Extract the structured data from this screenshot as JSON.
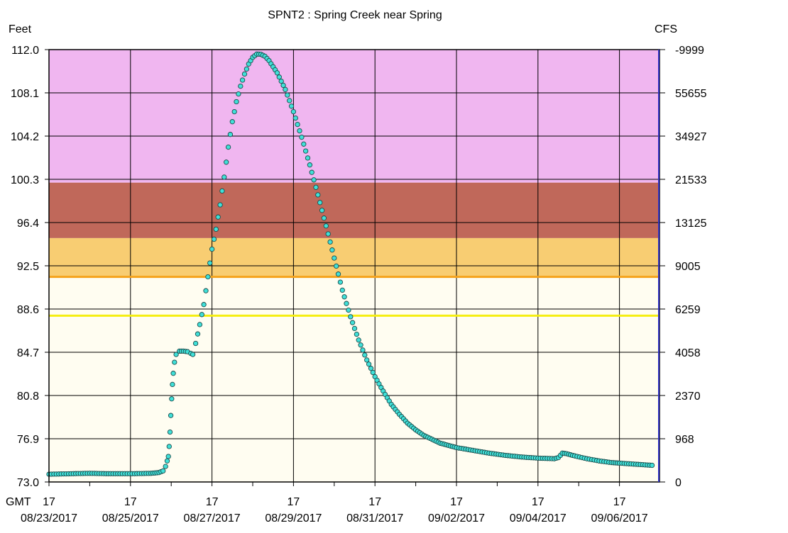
{
  "chart_data": {
    "type": "scatter",
    "title": "SPNT2  :  Spring Creek near Spring",
    "left_axis_label": "Feet",
    "right_axis_label": "CFS",
    "x_axis_prefix": "GMT",
    "ylim": [
      73.0,
      112.0
    ],
    "y_ticks": [
      "112.0",
      "108.1",
      "104.2",
      "100.3",
      "96.4",
      "92.5",
      "88.6",
      "84.7",
      "80.8",
      "76.9",
      "73.0"
    ],
    "y_tick_values": [
      112.0,
      108.1,
      104.2,
      100.3,
      96.4,
      92.5,
      88.6,
      84.7,
      80.8,
      76.9,
      73.0
    ],
    "right_ticks": [
      "-9999",
      "55655",
      "34927",
      "21533",
      "13125",
      "9005",
      "6259",
      "4058",
      "2370",
      "968",
      "0"
    ],
    "x_range_days": [
      0,
      7.45
    ],
    "x_ticks": [
      {
        "day": 0,
        "hour": "17",
        "date": "08/23/2017"
      },
      {
        "day": 1,
        "hour": "17",
        "date": ""
      },
      {
        "day": 2,
        "hour": "17",
        "date": "08/25/2017"
      },
      {
        "day": 3,
        "hour": "17",
        "date": ""
      },
      {
        "day": 4,
        "hour": "17",
        "date": "08/27/2017"
      },
      {
        "day": 5,
        "hour": "17",
        "date": ""
      },
      {
        "day": 6,
        "hour": "17",
        "date": "08/29/2017"
      },
      {
        "day": 7,
        "hour": "17",
        "date": ""
      },
      {
        "day": 8,
        "hour": "17",
        "date": "08/31/2017"
      },
      {
        "day": 9,
        "hour": "17",
        "date": ""
      },
      {
        "day": 10,
        "hour": "17",
        "date": "09/02/2017"
      },
      {
        "day": 11,
        "hour": "17",
        "date": ""
      },
      {
        "day": 12,
        "hour": "17",
        "date": "09/04/2017"
      },
      {
        "day": 13,
        "hour": "17",
        "date": ""
      },
      {
        "day": 14,
        "hour": "17",
        "date": "09/06/2017"
      }
    ],
    "flood_bands": [
      {
        "name": "major",
        "from": 100.0,
        "to": 112.0,
        "color": "#f0b6f0"
      },
      {
        "name": "moderate",
        "from": 95.0,
        "to": 100.0,
        "color": "#c0685a"
      },
      {
        "name": "minor",
        "from": 91.5,
        "to": 95.0,
        "color": "#f8cd72"
      },
      {
        "name": "normal",
        "from": 73.0,
        "to": 91.5,
        "color": "#fffdf1"
      }
    ],
    "threshold_lines": [
      {
        "name": "flood-stage",
        "value": 91.5,
        "color": "#f5a21c"
      },
      {
        "name": "action-stage",
        "value": 88.0,
        "color": "#f5ee10"
      }
    ],
    "grid": true,
    "series": [
      {
        "color": "#40e0d8",
        "points": [
          [
            0.0,
            73.7
          ],
          [
            0.3,
            73.72
          ],
          [
            0.6,
            73.75
          ],
          [
            1.0,
            73.78
          ],
          [
            1.4,
            73.75
          ],
          [
            1.8,
            73.75
          ],
          [
            2.1,
            73.75
          ],
          [
            2.5,
            73.78
          ],
          [
            2.7,
            73.85
          ],
          [
            2.8,
            74.0
          ],
          [
            2.86,
            74.4
          ],
          [
            2.9,
            74.9
          ],
          [
            2.93,
            75.3
          ],
          [
            2.95,
            76.2
          ],
          [
            2.97,
            77.5
          ],
          [
            2.99,
            79.0
          ],
          [
            3.01,
            80.5
          ],
          [
            3.03,
            81.8
          ],
          [
            3.05,
            82.8
          ],
          [
            3.08,
            83.8
          ],
          [
            3.12,
            84.5
          ],
          [
            3.2,
            84.8
          ],
          [
            3.3,
            84.8
          ],
          [
            3.4,
            84.75
          ],
          [
            3.48,
            84.6
          ],
          [
            3.53,
            84.5
          ],
          [
            3.6,
            85.5
          ],
          [
            3.7,
            87.2
          ],
          [
            3.8,
            89.0
          ],
          [
            3.9,
            91.5
          ],
          [
            4.0,
            94.0
          ],
          [
            4.1,
            95.8
          ],
          [
            4.2,
            98.0
          ],
          [
            4.3,
            100.5
          ],
          [
            4.4,
            103.2
          ],
          [
            4.5,
            105.5
          ],
          [
            4.6,
            107.3
          ],
          [
            4.7,
            108.7
          ],
          [
            4.8,
            109.8
          ],
          [
            4.9,
            110.7
          ],
          [
            5.0,
            111.3
          ],
          [
            5.1,
            111.6
          ],
          [
            5.2,
            111.58
          ],
          [
            5.3,
            111.4
          ],
          [
            5.4,
            111.0
          ],
          [
            5.6,
            109.9
          ],
          [
            5.8,
            108.4
          ],
          [
            6.0,
            106.4
          ],
          [
            6.2,
            104.1
          ],
          [
            6.4,
            101.6
          ],
          [
            6.6,
            98.9
          ],
          [
            6.8,
            96.1
          ],
          [
            7.0,
            93.2
          ],
          [
            7.2,
            90.3
          ],
          [
            7.4,
            87.9
          ],
          [
            7.6,
            85.8
          ],
          [
            7.8,
            84.0
          ],
          [
            8.0,
            82.5
          ],
          [
            8.2,
            81.2
          ],
          [
            8.4,
            80.0
          ],
          [
            8.6,
            79.1
          ],
          [
            8.8,
            78.3
          ],
          [
            9.0,
            77.7
          ],
          [
            9.2,
            77.2
          ],
          [
            9.4,
            76.85
          ],
          [
            9.6,
            76.5
          ],
          [
            9.8,
            76.3
          ],
          [
            10.0,
            76.1
          ],
          [
            10.4,
            75.85
          ],
          [
            10.8,
            75.6
          ],
          [
            11.2,
            75.4
          ],
          [
            11.6,
            75.25
          ],
          [
            12.0,
            75.15
          ],
          [
            12.4,
            75.1
          ],
          [
            12.5,
            75.2
          ],
          [
            12.6,
            75.6
          ],
          [
            12.7,
            75.55
          ],
          [
            12.9,
            75.35
          ],
          [
            13.2,
            75.1
          ],
          [
            13.5,
            74.9
          ],
          [
            13.8,
            74.75
          ],
          [
            14.0,
            74.7
          ],
          [
            14.4,
            74.6
          ],
          [
            14.8,
            74.5
          ]
        ]
      }
    ]
  }
}
